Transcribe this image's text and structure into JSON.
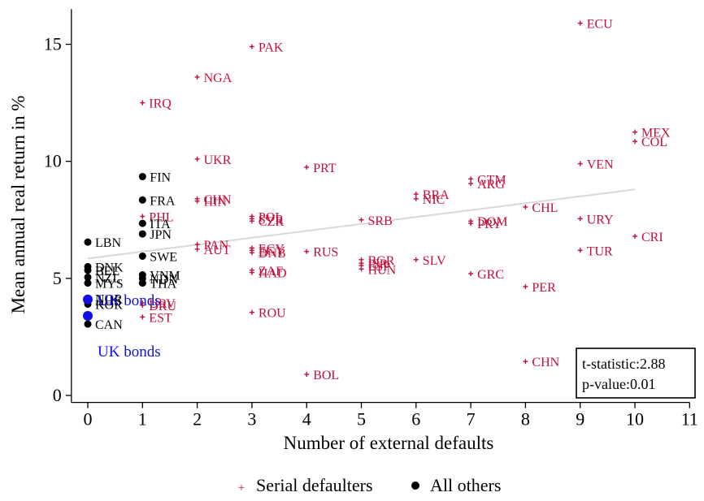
{
  "chart_data": {
    "type": "scatter",
    "title": "",
    "xlabel": "Number of external defaults",
    "ylabel": "Mean annual real return in %",
    "xlim": [
      -0.3,
      11
    ],
    "ylim": [
      -0.3,
      16.5
    ],
    "xticks": [
      0,
      1,
      2,
      3,
      4,
      5,
      6,
      7,
      8,
      9,
      10,
      11
    ],
    "yticks": [
      0,
      5,
      10,
      15
    ],
    "grid": false,
    "legend_position": "bottom",
    "colors": {
      "serial": "#c0103a",
      "others": "#000000",
      "uk": "#1010e0",
      "fit": "#d9d9d9"
    },
    "fit_line": {
      "x": [
        0,
        10
      ],
      "y": [
        5.85,
        8.8
      ]
    },
    "stats_box": {
      "t_stat": "t-statistic:2.88",
      "p_value": "p-value:0.01"
    },
    "series": [
      {
        "name": "Serial defaulters",
        "marker": "plus",
        "points": [
          {
            "label": "ECU",
            "x": 9,
            "y": 15.9
          },
          {
            "label": "PAK",
            "x": 3,
            "y": 14.9
          },
          {
            "label": "NGA",
            "x": 2,
            "y": 13.6
          },
          {
            "label": "IRQ",
            "x": 1,
            "y": 12.5
          },
          {
            "label": "MEX",
            "x": 10,
            "y": 11.25
          },
          {
            "label": "COL",
            "x": 10,
            "y": 10.85
          },
          {
            "label": "UKR",
            "x": 2,
            "y": 10.1
          },
          {
            "label": "VEN",
            "x": 9,
            "y": 9.9
          },
          {
            "label": "PRT",
            "x": 4,
            "y": 9.75
          },
          {
            "label": "GTM",
            "x": 7,
            "y": 9.25
          },
          {
            "label": "ARG",
            "x": 7,
            "y": 9.05
          },
          {
            "label": "BRA",
            "x": 6,
            "y": 8.6
          },
          {
            "label": "NIC",
            "x": 6,
            "y": 8.4
          },
          {
            "label": "CHN",
            "x": 2,
            "y": 8.4
          },
          {
            "label": "HIN",
            "x": 2,
            "y": 8.3
          },
          {
            "label": "CHL",
            "x": 8,
            "y": 8.05
          },
          {
            "label": "PHL",
            "x": 1,
            "y": 7.65
          },
          {
            "label": "POL",
            "x": 3,
            "y": 7.65
          },
          {
            "label": "SVR",
            "x": 3,
            "y": 7.55
          },
          {
            "label": "CZR",
            "x": 3,
            "y": 7.45
          },
          {
            "label": "URY",
            "x": 9,
            "y": 7.55
          },
          {
            "label": "SRB",
            "x": 5,
            "y": 7.5
          },
          {
            "label": "DOM",
            "x": 7,
            "y": 7.45
          },
          {
            "label": "PRY",
            "x": 7,
            "y": 7.35
          },
          {
            "label": "CRI",
            "x": 10,
            "y": 6.8
          },
          {
            "label": "PAN",
            "x": 2,
            "y": 6.45
          },
          {
            "label": "AUT",
            "x": 2,
            "y": 6.25
          },
          {
            "label": "ECY",
            "x": 3,
            "y": 6.3
          },
          {
            "label": "EGY",
            "x": 3,
            "y": 6.2
          },
          {
            "label": "DNB",
            "x": 3,
            "y": 6.1
          },
          {
            "label": "TUR",
            "x": 9,
            "y": 6.2
          },
          {
            "label": "RUS",
            "x": 4,
            "y": 6.15
          },
          {
            "label": "BGR",
            "x": 5,
            "y": 5.8
          },
          {
            "label": "ISR",
            "x": 5,
            "y": 5.65
          },
          {
            "label": "ESP",
            "x": 5,
            "y": 5.55
          },
          {
            "label": "HUN",
            "x": 5,
            "y": 5.4
          },
          {
            "label": "SLV",
            "x": 6,
            "y": 5.8
          },
          {
            "label": "ZAF",
            "x": 3,
            "y": 5.35
          },
          {
            "label": "HAD",
            "x": 3,
            "y": 5.25
          },
          {
            "label": "GRC",
            "x": 7,
            "y": 5.2
          },
          {
            "label": "PER",
            "x": 8,
            "y": 4.65
          },
          {
            "label": "URV",
            "x": 1,
            "y": 3.95
          },
          {
            "label": "DRU",
            "x": 1,
            "y": 3.85
          },
          {
            "label": "ROU",
            "x": 3,
            "y": 3.55
          },
          {
            "label": "EST",
            "x": 1,
            "y": 3.35
          },
          {
            "label": "CHN",
            "x": 8,
            "y": 1.45
          },
          {
            "label": "BOL",
            "x": 4,
            "y": 0.9
          }
        ]
      },
      {
        "name": "All others",
        "marker": "dot",
        "points": [
          {
            "label": "FIN",
            "x": 1,
            "y": 9.35
          },
          {
            "label": "FRA",
            "x": 1,
            "y": 8.35
          },
          {
            "label": "ITA",
            "x": 1,
            "y": 7.35
          },
          {
            "label": "JPN",
            "x": 1,
            "y": 6.9
          },
          {
            "label": "LBN",
            "x": 0,
            "y": 6.55
          },
          {
            "label": "SWE",
            "x": 1,
            "y": 5.95
          },
          {
            "label": "DNK",
            "x": 0,
            "y": 5.5
          },
          {
            "label": "BEL",
            "x": 0,
            "y": 5.35
          },
          {
            "label": "NZL",
            "x": 0,
            "y": 5.05
          },
          {
            "label": "MYS",
            "x": 0,
            "y": 4.8
          },
          {
            "label": "VNM",
            "x": 1,
            "y": 5.15
          },
          {
            "label": "NDN",
            "x": 1,
            "y": 5.0
          },
          {
            "label": "THA",
            "x": 1,
            "y": 4.8
          },
          {
            "label": "NOR",
            "x": 0,
            "y": 4.15
          },
          {
            "label": "AUS",
            "x": 0,
            "y": 4.05
          },
          {
            "label": "KOR",
            "x": 0,
            "y": 3.9
          },
          {
            "label": "CAN",
            "x": 0,
            "y": 3.05
          }
        ]
      },
      {
        "name": "UK bonds",
        "marker": "dot-large",
        "points": [
          {
            "label": "UK bonds",
            "x": 0,
            "y": 4.1
          },
          {
            "label": "UK bonds",
            "x": 0,
            "y": 3.4
          }
        ]
      }
    ]
  }
}
